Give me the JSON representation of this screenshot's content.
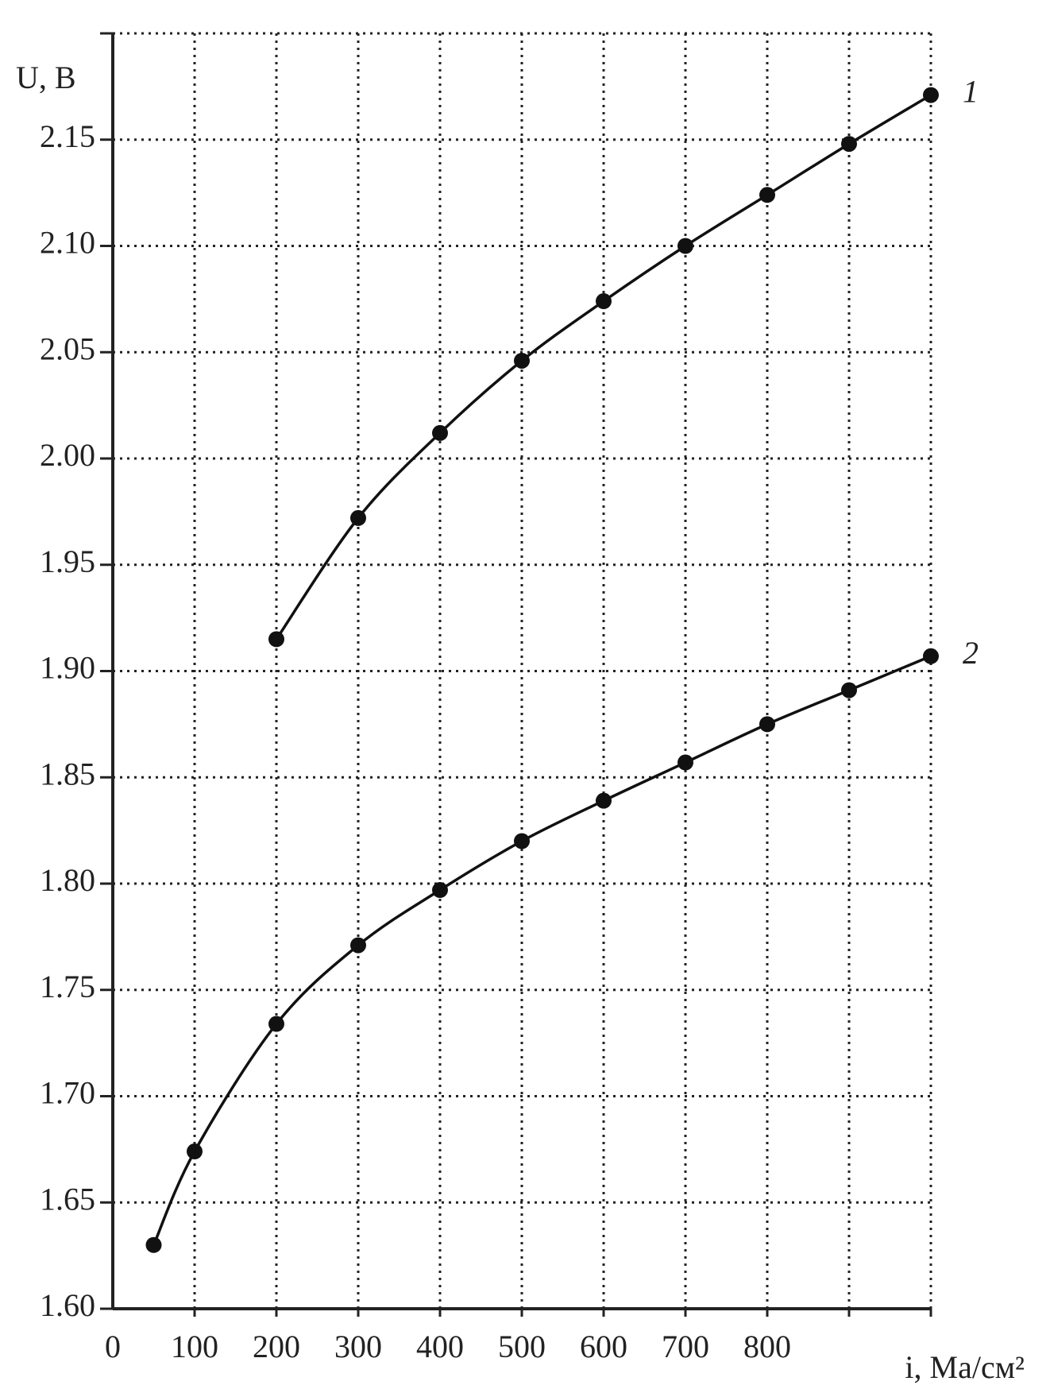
{
  "chart_data": {
    "type": "line",
    "y_label": "U, В",
    "x_label": "i, Ма/см²",
    "xlim": [
      0,
      1000
    ],
    "ylim": [
      1.6,
      2.2
    ],
    "xticks": [
      0,
      100,
      200,
      300,
      400,
      500,
      600,
      700,
      800
    ],
    "xgrid": [
      100,
      200,
      300,
      400,
      500,
      600,
      700,
      800,
      900,
      1000
    ],
    "yticks": [
      {
        "value": 1.6,
        "label": "1.60"
      },
      {
        "value": 1.65,
        "label": "1.65"
      },
      {
        "value": 1.7,
        "label": "1.70"
      },
      {
        "value": 1.75,
        "label": "1.75"
      },
      {
        "value": 1.8,
        "label": "1.80"
      },
      {
        "value": 1.85,
        "label": "1.85"
      },
      {
        "value": 1.9,
        "label": "1.90"
      },
      {
        "value": 1.95,
        "label": "1.95"
      },
      {
        "value": 2.0,
        "label": "2.00"
      },
      {
        "value": 2.05,
        "label": "2.05"
      },
      {
        "value": 2.1,
        "label": "2.10"
      },
      {
        "value": 2.15,
        "label": "2.15"
      }
    ],
    "grid": true,
    "series": [
      {
        "name": "1",
        "color": "#111111",
        "x": [
          200,
          300,
          400,
          500,
          600,
          700,
          800,
          900,
          1000
        ],
        "values": [
          1.915,
          1.972,
          2.012,
          2.046,
          2.074,
          2.1,
          2.124,
          2.148,
          2.171
        ]
      },
      {
        "name": "2",
        "color": "#111111",
        "x": [
          50,
          100,
          200,
          300,
          400,
          500,
          600,
          700,
          800,
          900,
          1000
        ],
        "values": [
          1.63,
          1.674,
          1.734,
          1.771,
          1.797,
          1.82,
          1.839,
          1.857,
          1.875,
          1.891,
          1.907
        ]
      }
    ]
  }
}
